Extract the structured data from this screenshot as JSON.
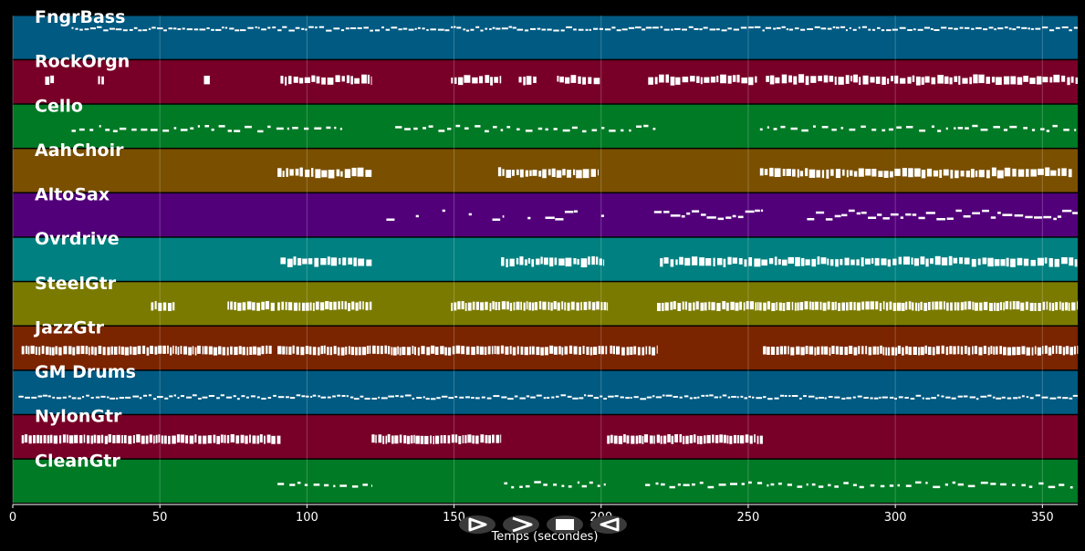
{
  "chart_data": {
    "type": "piano-roll",
    "xlabel": "Temps (secondes)",
    "xlim": [
      0,
      362
    ],
    "xticks": [
      0,
      50,
      100,
      150,
      200,
      250,
      300,
      350
    ],
    "grid": true,
    "note_color": "#ffffff",
    "tracks": [
      {
        "name": "FngrBass",
        "color": "#005a82",
        "segments": [
          [
            20,
            362
          ]
        ],
        "style": "thin-line",
        "level": 0.3
      },
      {
        "name": "RockOrgn",
        "color": "#780028",
        "segments": [
          [
            11,
            14
          ],
          [
            29,
            31
          ],
          [
            65,
            67
          ],
          [
            91,
            122
          ],
          [
            149,
            166
          ],
          [
            172,
            178
          ],
          [
            185,
            200
          ],
          [
            216,
            253
          ],
          [
            256,
            362
          ]
        ],
        "style": "blocks",
        "level": 0.45
      },
      {
        "name": "Cello",
        "color": "#007a25",
        "segments": [
          [
            20,
            112
          ],
          [
            130,
            220
          ],
          [
            254,
            362
          ]
        ],
        "style": "dashes",
        "level": 0.55
      },
      {
        "name": "AahChoir",
        "color": "#7a4f00",
        "segments": [
          [
            90,
            122
          ],
          [
            165,
            199
          ],
          [
            254,
            360
          ]
        ],
        "style": "blocks",
        "level": 0.55
      },
      {
        "name": "AltoSax",
        "color": "#52007a",
        "segments": [
          [
            127,
            130
          ],
          [
            137,
            138
          ],
          [
            146,
            147
          ],
          [
            155,
            156
          ],
          [
            163,
            167
          ],
          [
            175,
            176
          ],
          [
            181,
            192
          ],
          [
            200,
            201
          ],
          [
            218,
            255
          ],
          [
            270,
            362
          ]
        ],
        "style": "melody",
        "level": 0.5
      },
      {
        "name": "Ovrdrive",
        "color": "#008080",
        "segments": [
          [
            91,
            122
          ],
          [
            166,
            201
          ],
          [
            220,
            362
          ]
        ],
        "style": "blocks",
        "level": 0.55
      },
      {
        "name": "SteelGtr",
        "color": "#7a7a00",
        "segments": [
          [
            47,
            55
          ],
          [
            73,
            89
          ],
          [
            90,
            122
          ],
          [
            149,
            202
          ],
          [
            219,
            362
          ]
        ],
        "style": "dense",
        "level": 0.55
      },
      {
        "name": "JazzGtr",
        "color": "#7a2400",
        "segments": [
          [
            3,
            88
          ],
          [
            90,
            202
          ],
          [
            203,
            219
          ],
          [
            255,
            362
          ]
        ],
        "style": "dense",
        "level": 0.55
      },
      {
        "name": "GM Drums",
        "color": "#005a82",
        "segments": [
          [
            2,
            362
          ]
        ],
        "style": "thin-line",
        "level": 0.6
      },
      {
        "name": "NylonGtr",
        "color": "#780028",
        "segments": [
          [
            3,
            91
          ],
          [
            122,
            166
          ],
          [
            202,
            255
          ]
        ],
        "style": "dense",
        "level": 0.55
      },
      {
        "name": "CleanGtr",
        "color": "#007a25",
        "segments": [
          [
            90,
            122
          ],
          [
            167,
            202
          ],
          [
            215,
            362
          ]
        ],
        "style": "dashes",
        "level": 0.58
      }
    ]
  },
  "controls": [
    {
      "name": "play-button",
      "icon": "play-icon"
    },
    {
      "name": "forward-button",
      "icon": "chevron-right-icon"
    },
    {
      "name": "stop-button",
      "icon": "stop-icon"
    },
    {
      "name": "rewind-button",
      "icon": "rewind-icon"
    }
  ]
}
